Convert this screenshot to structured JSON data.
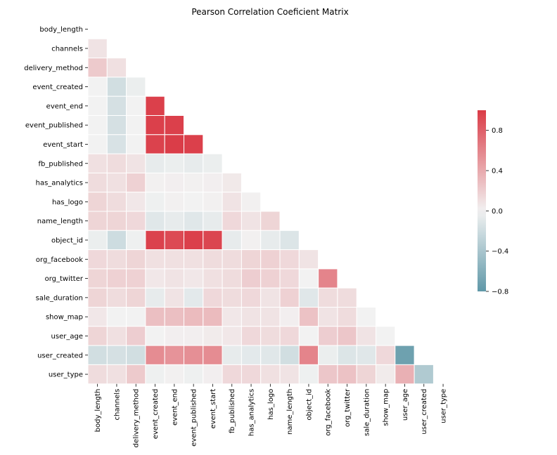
{
  "chart_data": {
    "type": "heatmap",
    "title": "Pearson Correlation Coeficient Matrix",
    "xlabel": "",
    "ylabel": "",
    "mask": "upper-triangle-and-diagonal",
    "grid": false,
    "legend": "colorbar-right",
    "colorscale": {
      "min": -0.8,
      "max": 1.0,
      "negative_color": "#5f98a8",
      "neutral_color": "#f2f2f2",
      "positive_color": "#da3b46",
      "ticks": [
        -0.8,
        -0.4,
        0.0,
        0.4,
        0.8
      ],
      "tick_labels": [
        "−0.8",
        "−0.4",
        "0.0",
        "0.4",
        "0.8"
      ]
    },
    "categories": [
      "body_length",
      "channels",
      "delivery_method",
      "event_created",
      "event_end",
      "event_published",
      "event_start",
      "fb_published",
      "has_analytics",
      "has_logo",
      "name_length",
      "object_id",
      "org_facebook",
      "org_twitter",
      "sale_duration",
      "show_map",
      "user_age",
      "user_created",
      "user_type"
    ],
    "matrix": [
      [],
      [
        0.08
      ],
      [
        0.22,
        0.1
      ],
      [
        0.0,
        -0.18,
        -0.04
      ],
      [
        0.0,
        -0.16,
        0.0,
        0.97
      ],
      [
        0.0,
        -0.16,
        0.0,
        0.97,
        0.97
      ],
      [
        0.0,
        -0.14,
        0.0,
        0.96,
        0.99,
        0.97
      ],
      [
        0.1,
        0.12,
        0.08,
        -0.06,
        -0.04,
        -0.06,
        -0.04
      ],
      [
        0.12,
        0.1,
        0.18,
        0.01,
        0.02,
        0.01,
        0.02,
        0.05
      ],
      [
        0.16,
        0.12,
        0.06,
        -0.02,
        0.01,
        0.0,
        0.01,
        0.08,
        0.01
      ],
      [
        0.16,
        0.16,
        0.14,
        -0.1,
        -0.06,
        -0.1,
        -0.06,
        0.14,
        0.08,
        0.16
      ],
      [
        -0.04,
        -0.2,
        -0.02,
        0.96,
        0.92,
        0.97,
        0.94,
        -0.06,
        0.01,
        -0.06,
        -0.12
      ],
      [
        0.14,
        0.12,
        0.16,
        0.1,
        0.1,
        0.1,
        0.12,
        0.12,
        0.16,
        0.18,
        0.14,
        0.08
      ],
      [
        0.16,
        0.18,
        0.18,
        0.06,
        0.08,
        0.06,
        0.1,
        0.12,
        0.2,
        0.18,
        0.14,
        0.0,
        0.6
      ],
      [
        0.16,
        0.12,
        0.16,
        -0.06,
        0.08,
        -0.08,
        0.14,
        0.12,
        0.14,
        0.08,
        0.18,
        -0.1,
        0.12,
        0.12
      ],
      [
        0.06,
        0.0,
        0.0,
        0.28,
        0.28,
        0.3,
        0.3,
        0.06,
        0.08,
        0.08,
        0.02,
        0.26,
        0.08,
        0.12,
        0.0
      ],
      [
        0.16,
        0.1,
        0.2,
        0.0,
        0.02,
        0.02,
        0.04,
        0.06,
        0.14,
        0.12,
        0.14,
        0.0,
        0.2,
        0.24,
        0.08,
        0.0
      ],
      [
        -0.18,
        -0.16,
        -0.18,
        0.56,
        0.52,
        0.54,
        0.56,
        -0.06,
        -0.08,
        -0.1,
        -0.18,
        0.6,
        -0.04,
        -0.12,
        -0.1,
        0.14,
        -0.72
      ],
      [
        0.12,
        0.1,
        0.22,
        -0.02,
        0.01,
        -0.02,
        0.02,
        0.14,
        0.14,
        0.1,
        0.08,
        -0.02,
        0.24,
        0.26,
        0.16,
        0.04,
        0.36,
        -0.36
      ]
    ]
  }
}
